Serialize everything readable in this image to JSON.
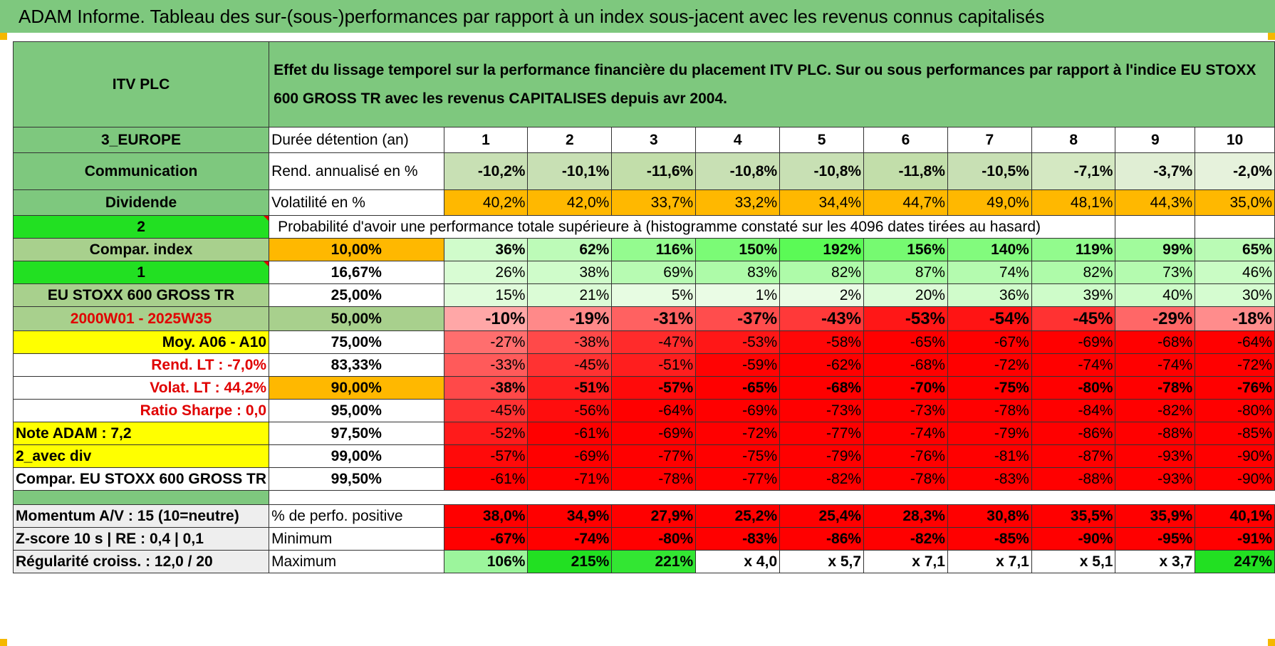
{
  "title": "ADAM Informe. Tableau des sur-(sous-)performances par rapport à un index sous-jacent avec les revenus connus capitalisés",
  "header": {
    "asset": "ITV PLC",
    "description": "Effet du lissage temporel sur la performance financière du placement ITV PLC. Sur ou sous performances par rapport à l'indice EU STOXX 600 GROSS TR avec les revenus CAPITALISES depuis avr 2004."
  },
  "side": {
    "region": "3_EUROPE",
    "sector": "Communication",
    "dividende": "Dividende",
    "count2": "2",
    "compar_index": "Compar. index",
    "count1": "1",
    "index_name": "EU STOXX 600 GROSS TR",
    "period": "2000W01 - 2025W35",
    "moy": "Moy. A06 - A10",
    "rend_lt": "Rend. LT :   -7,0%",
    "volat_lt": "Volat. LT :   44,2%",
    "sharpe": "Ratio Sharpe :    0,0",
    "note": "Note ADAM : 7,2",
    "avec_div": "2_avec div",
    "compar": "Compar. EU STOXX 600 GROSS TR",
    "momentum": "Momentum A/V : 15 (10=neutre)",
    "zscore": "Z-score 10 s | RE : 0,4 | 0,1",
    "regularite": "Régularité croiss. : 12,0 / 20"
  },
  "labels": {
    "duree": "Durée détention (an)",
    "rend": "Rend. annualisé en %",
    "vol": "Volatilité en %",
    "proba": "Probabilité d'avoir une performance totale supérieure à (histogramme constaté sur les 4096 dates tirées au hasard)",
    "pos": "% de perfo. positive",
    "min": "Minimum",
    "max": "Maximum"
  },
  "years": [
    "1",
    "2",
    "3",
    "4",
    "5",
    "6",
    "7",
    "8",
    "9",
    "10"
  ],
  "rend": [
    "-10,2%",
    "-10,1%",
    "-11,6%",
    "-10,8%",
    "-10,8%",
    "-11,8%",
    "-10,5%",
    "-7,1%",
    "-3,7%",
    "-2,0%"
  ],
  "vol": [
    "40,2%",
    "42,0%",
    "33,7%",
    "33,2%",
    "34,4%",
    "44,7%",
    "49,0%",
    "48,1%",
    "44,3%",
    "35,0%"
  ],
  "quantiles": [
    {
      "p": "10,00%",
      "v": [
        "36%",
        "62%",
        "116%",
        "150%",
        "192%",
        "156%",
        "140%",
        "119%",
        "99%",
        "65%"
      ]
    },
    {
      "p": "16,67%",
      "v": [
        "26%",
        "38%",
        "69%",
        "83%",
        "82%",
        "87%",
        "74%",
        "82%",
        "73%",
        "46%"
      ]
    },
    {
      "p": "25,00%",
      "v": [
        "15%",
        "21%",
        "5%",
        "1%",
        "2%",
        "20%",
        "36%",
        "39%",
        "40%",
        "30%"
      ]
    },
    {
      "p": "50,00%",
      "v": [
        "-10%",
        "-19%",
        "-31%",
        "-37%",
        "-43%",
        "-53%",
        "-54%",
        "-45%",
        "-29%",
        "-18%"
      ]
    },
    {
      "p": "75,00%",
      "v": [
        "-27%",
        "-38%",
        "-47%",
        "-53%",
        "-58%",
        "-65%",
        "-67%",
        "-69%",
        "-68%",
        "-64%"
      ]
    },
    {
      "p": "83,33%",
      "v": [
        "-33%",
        "-45%",
        "-51%",
        "-59%",
        "-62%",
        "-68%",
        "-72%",
        "-74%",
        "-74%",
        "-72%"
      ]
    },
    {
      "p": "90,00%",
      "v": [
        "-38%",
        "-51%",
        "-57%",
        "-65%",
        "-68%",
        "-70%",
        "-75%",
        "-80%",
        "-78%",
        "-76%"
      ]
    },
    {
      "p": "95,00%",
      "v": [
        "-45%",
        "-56%",
        "-64%",
        "-69%",
        "-73%",
        "-73%",
        "-78%",
        "-84%",
        "-82%",
        "-80%"
      ]
    },
    {
      "p": "97,50%",
      "v": [
        "-52%",
        "-61%",
        "-69%",
        "-72%",
        "-77%",
        "-74%",
        "-79%",
        "-86%",
        "-88%",
        "-85%"
      ]
    },
    {
      "p": "99,00%",
      "v": [
        "-57%",
        "-69%",
        "-77%",
        "-75%",
        "-79%",
        "-76%",
        "-81%",
        "-87%",
        "-93%",
        "-90%"
      ]
    },
    {
      "p": "99,50%",
      "v": [
        "-61%",
        "-71%",
        "-78%",
        "-77%",
        "-82%",
        "-78%",
        "-83%",
        "-88%",
        "-93%",
        "-90%"
      ]
    }
  ],
  "pos": [
    "38,0%",
    "34,9%",
    "27,9%",
    "25,2%",
    "25,4%",
    "28,3%",
    "30,8%",
    "35,5%",
    "35,9%",
    "40,1%"
  ],
  "min": [
    "-67%",
    "-74%",
    "-80%",
    "-83%",
    "-86%",
    "-82%",
    "-85%",
    "-90%",
    "-95%",
    "-91%"
  ],
  "max": [
    "106%",
    "215%",
    "221%",
    "x 4,0",
    "x 5,7",
    "x 7,1",
    "x 7,1",
    "x 5,1",
    "x 3,7",
    "247%"
  ],
  "colors": {
    "title_green": "#7ec87e",
    "header_green": "#7ec87e",
    "orange": "#ffb800",
    "yellow": "#ffff00",
    "bright_green": "#22e022",
    "neg_red": "#ff0000"
  }
}
